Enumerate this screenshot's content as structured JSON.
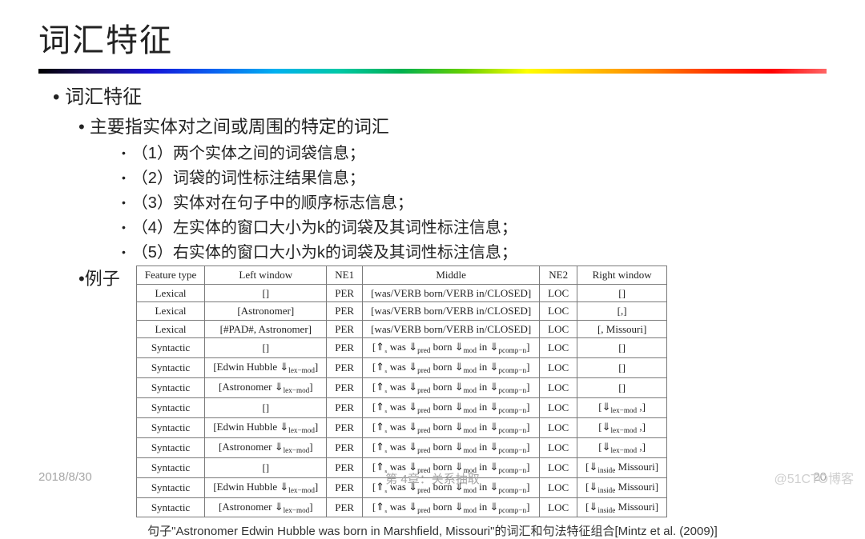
{
  "title": "词汇特征",
  "bullets": {
    "lvl1_a": "词汇特征",
    "lvl2_a": "主要指实体对之间或周围的特定的词汇",
    "lvl3": [
      "（1）两个实体之间的词袋信息；",
      "（2）词袋的词性标注结果信息；",
      "（3）实体对在句子中的顺序标志信息；",
      "（4）左实体的窗口大小为k的词袋及其词性标注信息；",
      "（5）右实体的窗口大小为k的词袋及其词性标注信息；"
    ],
    "lvl2_b": "例子"
  },
  "table": {
    "type": "table",
    "border_color": "#7a7a7a",
    "font_family": "Times New Roman",
    "header_fontsize": 13,
    "cell_fontsize": 13,
    "columns": [
      "Feature type",
      "Left window",
      "NE1",
      "Middle",
      "NE2",
      "Right window"
    ],
    "rows": [
      [
        "Lexical",
        "[]",
        "PER",
        "[was/VERB born/VERB in/CLOSED]",
        "LOC",
        "[]"
      ],
      [
        "Lexical",
        "[Astronomer]",
        "PER",
        "[was/VERB born/VERB in/CLOSED]",
        "LOC",
        "[,]"
      ],
      [
        "Lexical",
        "[#PAD#, Astronomer]",
        "PER",
        "[was/VERB born/VERB in/CLOSED]",
        "LOC",
        "[, Missouri]"
      ],
      [
        "Syntactic",
        "[]",
        "PER",
        "[⇑ₛ was ⇓pred born ⇓mod in ⇓pcomp−n]",
        "LOC",
        "[]"
      ],
      [
        "Syntactic",
        "[Edwin Hubble ⇓lex−mod]",
        "PER",
        "[⇑ₛ was ⇓pred born ⇓mod in ⇓pcomp−n]",
        "LOC",
        "[]"
      ],
      [
        "Syntactic",
        "[Astronomer ⇓lex−mod]",
        "PER",
        "[⇑ₛ was ⇓pred born ⇓mod in ⇓pcomp−n]",
        "LOC",
        "[]"
      ],
      [
        "Syntactic",
        "[]",
        "PER",
        "[⇑ₛ was ⇓pred born ⇓mod in ⇓pcomp−n]",
        "LOC",
        "[⇓lex−mod ,]"
      ],
      [
        "Syntactic",
        "[Edwin Hubble ⇓lex−mod]",
        "PER",
        "[⇑ₛ was ⇓pred born ⇓mod in ⇓pcomp−n]",
        "LOC",
        "[⇓lex−mod ,]"
      ],
      [
        "Syntactic",
        "[Astronomer ⇓lex−mod]",
        "PER",
        "[⇑ₛ was ⇓pred born ⇓mod in ⇓pcomp−n]",
        "LOC",
        "[⇓lex−mod ,]"
      ],
      [
        "Syntactic",
        "[]",
        "PER",
        "[⇑ₛ was ⇓pred born ⇓mod in ⇓pcomp−n]",
        "LOC",
        "[⇓inside Missouri]"
      ],
      [
        "Syntactic",
        "[Edwin Hubble ⇓lex−mod]",
        "PER",
        "[⇑ₛ was ⇓pred born ⇓mod in ⇓pcomp−n]",
        "LOC",
        "[⇓inside Missouri]"
      ],
      [
        "Syntactic",
        "[Astronomer ⇓lex−mod]",
        "PER",
        "[⇑ₛ was ⇓pred born ⇓mod in ⇓pcomp−n]",
        "LOC",
        "[⇓inside Missouri]"
      ]
    ]
  },
  "caption": "句子\"Astronomer Edwin Hubble was born in Marshfield, Missouri\"的词汇和句法特征组合[Mintz et al. (2009)]",
  "footer": {
    "date": "2018/8/30",
    "chapter": "第 4章：关系抽取",
    "page": "20"
  },
  "watermark": "@51CTO博客",
  "colors": {
    "background": "#ffffff",
    "text": "#222222",
    "footer_text": "#a6a6a6",
    "watermark": "#cfcfcf"
  }
}
